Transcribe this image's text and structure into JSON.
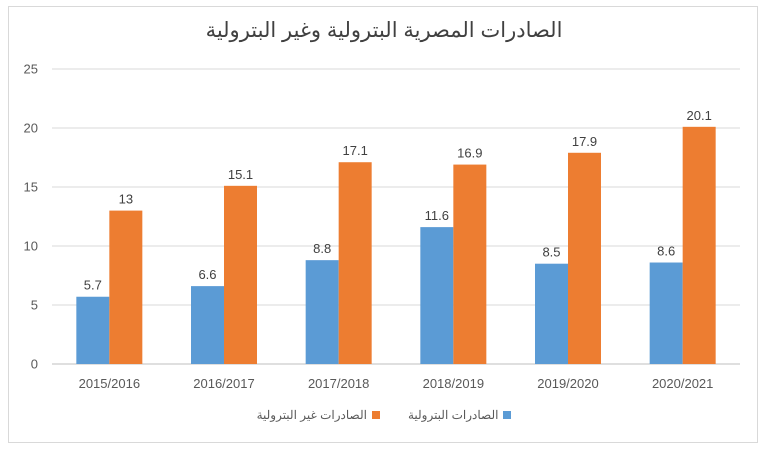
{
  "chart_data": {
    "type": "bar",
    "title": "الصادرات المصرية البترولية وغير البترولية",
    "categories": [
      "2015/2016",
      "2016/2017",
      "2017/2018",
      "2018/2019",
      "2019/2020",
      "2020/2021"
    ],
    "series": [
      {
        "name": "الصادرات البترولية",
        "color": "#5b9bd5",
        "values": [
          5.7,
          6.6,
          8.8,
          11.6,
          8.5,
          8.6
        ]
      },
      {
        "name": "الصادرات غير البترولية",
        "color": "#ed7d31",
        "values": [
          13,
          15.1,
          17.1,
          16.9,
          17.9,
          20.1
        ]
      }
    ],
    "ylim": [
      0,
      25
    ],
    "yticks": [
      0,
      5,
      10,
      15,
      20,
      25
    ],
    "grid": true,
    "legend_position": "bottom",
    "data_labels": true
  }
}
